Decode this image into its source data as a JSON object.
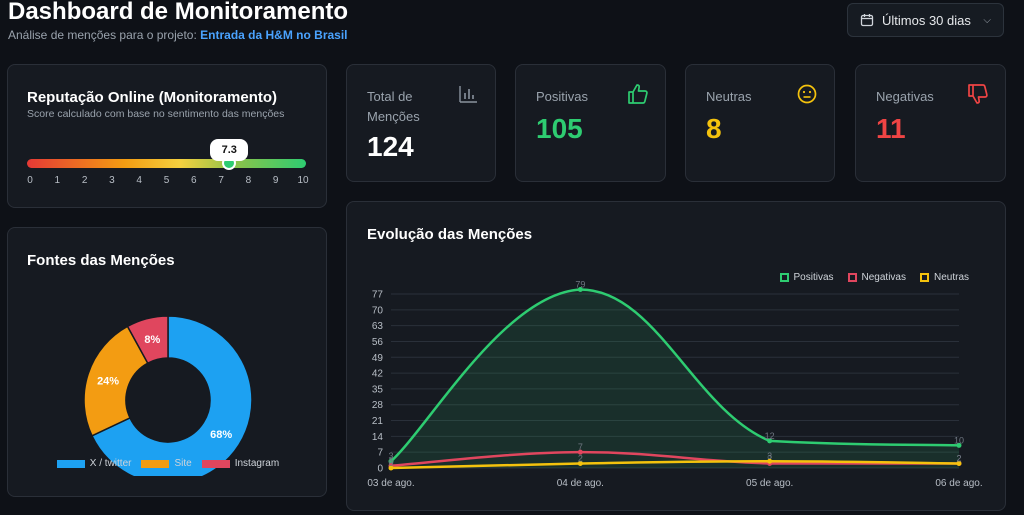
{
  "header": {
    "title": "Dashboard de Monitoramento",
    "subtitle_prefix": "Análise de menções para o projeto:",
    "project_name": "Entrada da H&M no Brasil",
    "range_label": "Últimos 30 dias"
  },
  "reputation": {
    "title": "Reputação Online (Monitoramento)",
    "subtitle": "Score calculado com base no sentimento das menções",
    "score": 7.3,
    "score_label": "7.3",
    "ticks": [
      "0",
      "1",
      "2",
      "3",
      "4",
      "5",
      "6",
      "7",
      "8",
      "9",
      "10"
    ]
  },
  "stats": {
    "total": {
      "label": "Total de Menções",
      "value": "124",
      "color": "#ffffff"
    },
    "positive": {
      "label": "Positivas",
      "value": "105",
      "color": "#2ecc71"
    },
    "neutral": {
      "label": "Neutras",
      "value": "8",
      "color": "#f4c20d"
    },
    "negative": {
      "label": "Negativas",
      "value": "11",
      "color": "#ef4444"
    }
  },
  "sources": {
    "title": "Fontes das Menções",
    "chart_data": {
      "type": "pie",
      "categories": [
        "X / twitter",
        "Site",
        "Instagram"
      ],
      "values": [
        68,
        24,
        8
      ],
      "labels": [
        "68%",
        "24%",
        "8%"
      ],
      "colors": [
        "#1da1f2",
        "#f39c12",
        "#e0465e"
      ],
      "legend": "bottom"
    }
  },
  "evolution": {
    "title": "Evolução das Menções",
    "chart_data": {
      "type": "line",
      "x": [
        "03 de ago.",
        "04 de ago.",
        "05 de ago.",
        "06 de ago."
      ],
      "series": [
        {
          "name": "Positivas",
          "values": [
            3,
            79,
            12,
            10
          ],
          "color": "#2ecc71"
        },
        {
          "name": "Negativas",
          "values": [
            1,
            7,
            2,
            2
          ],
          "color": "#e0465e"
        },
        {
          "name": "Neutras",
          "values": [
            0,
            2,
            3,
            2
          ],
          "color": "#f4c20d"
        }
      ],
      "yticks": [
        "0",
        "7",
        "14",
        "21",
        "28",
        "35",
        "42",
        "49",
        "56",
        "63",
        "70",
        "77"
      ],
      "ylim": [
        0,
        77
      ],
      "legend": "top-right",
      "grid": true
    }
  }
}
